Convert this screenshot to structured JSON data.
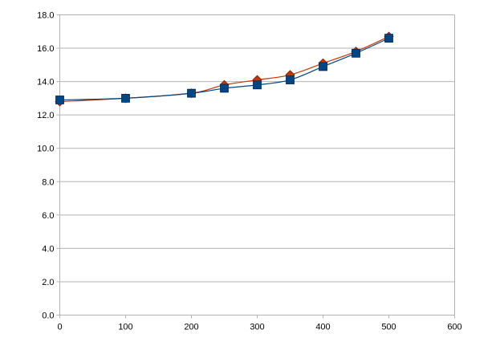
{
  "chart_data": {
    "type": "line",
    "xlim": [
      0,
      600
    ],
    "ylim": [
      0.0,
      18.0
    ],
    "x_ticks": [
      "0",
      "100",
      "200",
      "300",
      "400",
      "500",
      "600"
    ],
    "y_ticks": [
      "0.0",
      "2.0",
      "4.0",
      "6.0",
      "8.0",
      "10.0",
      "12.0",
      "14.0",
      "16.0",
      "18.0"
    ],
    "grid": true,
    "legend": "none",
    "series": [
      {
        "color": "#cc3300",
        "marker": "diamond",
        "points": [
          [
            0,
            12.8
          ],
          [
            100,
            13.0
          ],
          [
            200,
            13.3
          ],
          [
            250,
            13.8
          ],
          [
            300,
            14.1
          ],
          [
            350,
            14.4
          ],
          [
            400,
            15.1
          ],
          [
            450,
            15.8
          ],
          [
            500,
            16.7
          ]
        ]
      },
      {
        "color": "#004586",
        "marker": "square",
        "points": [
          [
            0,
            12.9
          ],
          [
            100,
            13.0
          ],
          [
            200,
            13.3
          ],
          [
            250,
            13.6
          ],
          [
            300,
            13.8
          ],
          [
            350,
            14.1
          ],
          [
            400,
            14.9
          ],
          [
            450,
            15.7
          ],
          [
            500,
            16.6
          ]
        ]
      }
    ]
  }
}
